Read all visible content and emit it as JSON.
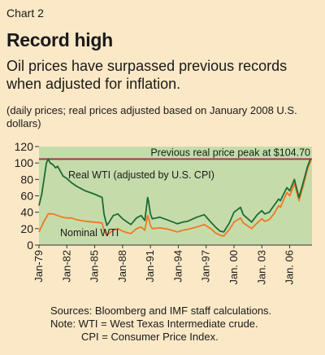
{
  "header": {
    "chart_label": "Chart 2",
    "title": "Record high",
    "subtitle": "Oil prices have surpassed previous records when adjusted for inflation.",
    "note": "(daily prices; real prices adjusted based on January 2008 U.S. dollars)"
  },
  "footer": {
    "sources": "Sources: Bloomberg and IMF staff calculations.",
    "note_wti": "Note: WTI = West Texas Intermediate crude.",
    "note_cpi": "CPI = Consumer Price Index."
  },
  "colors": {
    "panel_background": "#fbe8c6",
    "plot_background": "#c5dcaa",
    "real_series": "#1c6b35",
    "nominal_series": "#f07822",
    "reference_line": "#9a3a55"
  },
  "chart_data": {
    "type": "line",
    "ylim": [
      0,
      120
    ],
    "yticks": [
      0,
      20,
      40,
      60,
      80,
      100,
      120
    ],
    "xlim": [
      1979.0,
      2008.4
    ],
    "xtick_labels": [
      "Jan-79",
      "Jan-82",
      "Jan-85",
      "Jan-88",
      "Jan-91",
      "Jan-94",
      "Jan-97",
      "Jan. 00",
      "Jan. 03",
      "Jan. 06"
    ],
    "xtick_years": [
      1979,
      1982,
      1985,
      1988,
      1991,
      1994,
      1997,
      2000,
      2003,
      2006
    ],
    "grid": false,
    "reference_line": {
      "label": "Previous real price peak at $104.70",
      "value": 104.7
    },
    "series": [
      {
        "name": "Real WTI (adjusted by U.S. CPI)",
        "x": [
          1979.0,
          1979.3,
          1979.6,
          1979.8,
          1980.0,
          1980.2,
          1980.5,
          1980.8,
          1981.0,
          1981.3,
          1981.6,
          1982.0,
          1982.5,
          1983.0,
          1983.5,
          1984.0,
          1984.5,
          1985.0,
          1985.4,
          1985.8,
          1986.0,
          1986.3,
          1986.5,
          1987.0,
          1987.5,
          1988.0,
          1988.5,
          1988.9,
          1989.5,
          1990.0,
          1990.4,
          1990.7,
          1990.8,
          1991.0,
          1991.2,
          1992.0,
          1993.0,
          1993.9,
          1994.5,
          1995.0,
          1996.0,
          1996.8,
          1997.5,
          1998.0,
          1998.5,
          1998.9,
          1999.5,
          2000.0,
          2000.7,
          2001.0,
          2001.9,
          2002.5,
          2003.0,
          2003.3,
          2003.8,
          2004.3,
          2004.8,
          2005.0,
          2005.7,
          2006.0,
          2006.5,
          2007.0,
          2007.5,
          2007.9,
          2008.0,
          2008.2,
          2008.3
        ],
        "values": [
          48,
          62,
          85,
          100,
          105,
          100,
          98,
          94,
          96,
          90,
          84,
          81,
          76,
          72,
          69,
          66,
          64,
          62,
          60,
          58,
          38,
          24,
          27,
          36,
          38,
          32,
          28,
          25,
          33,
          36,
          30,
          58,
          53,
          38,
          32,
          34,
          30,
          26,
          28,
          29,
          34,
          37,
          28,
          22,
          17,
          16,
          27,
          40,
          46,
          37,
          28,
          37,
          42,
          38,
          40,
          48,
          56,
          54,
          70,
          66,
          80,
          58,
          78,
          95,
          98,
          104,
          105
        ]
      },
      {
        "name": "Nominal WTI",
        "x": [
          1979.0,
          1979.5,
          1980.0,
          1980.5,
          1981.0,
          1981.5,
          1982.0,
          1982.5,
          1983.0,
          1984.0,
          1985.0,
          1985.8,
          1986.0,
          1986.3,
          1986.5,
          1987.0,
          1987.5,
          1988.0,
          1988.5,
          1988.9,
          1989.5,
          1990.0,
          1990.4,
          1990.7,
          1990.8,
          1991.0,
          1991.2,
          1992.0,
          1993.0,
          1993.9,
          1994.5,
          1995.0,
          1996.0,
          1996.8,
          1997.5,
          1998.0,
          1998.5,
          1998.9,
          1999.5,
          2000.0,
          2000.7,
          2001.0,
          2001.9,
          2002.5,
          2003.0,
          2003.3,
          2003.8,
          2004.3,
          2004.8,
          2005.0,
          2005.7,
          2006.0,
          2006.5,
          2007.0,
          2007.5,
          2007.9,
          2008.0,
          2008.2,
          2008.3
        ],
        "values": [
          16,
          28,
          38,
          38,
          36,
          34,
          33,
          33,
          31,
          29,
          28,
          27,
          18,
          12,
          14,
          18,
          20,
          17,
          15,
          14,
          20,
          22,
          18,
          36,
          33,
          24,
          20,
          21,
          19,
          16,
          18,
          19,
          22,
          25,
          20,
          15,
          12,
          11,
          19,
          28,
          33,
          27,
          20,
          27,
          32,
          29,
          31,
          38,
          48,
          46,
          64,
          60,
          75,
          54,
          74,
          92,
          95,
          101,
          103
        ]
      }
    ]
  }
}
